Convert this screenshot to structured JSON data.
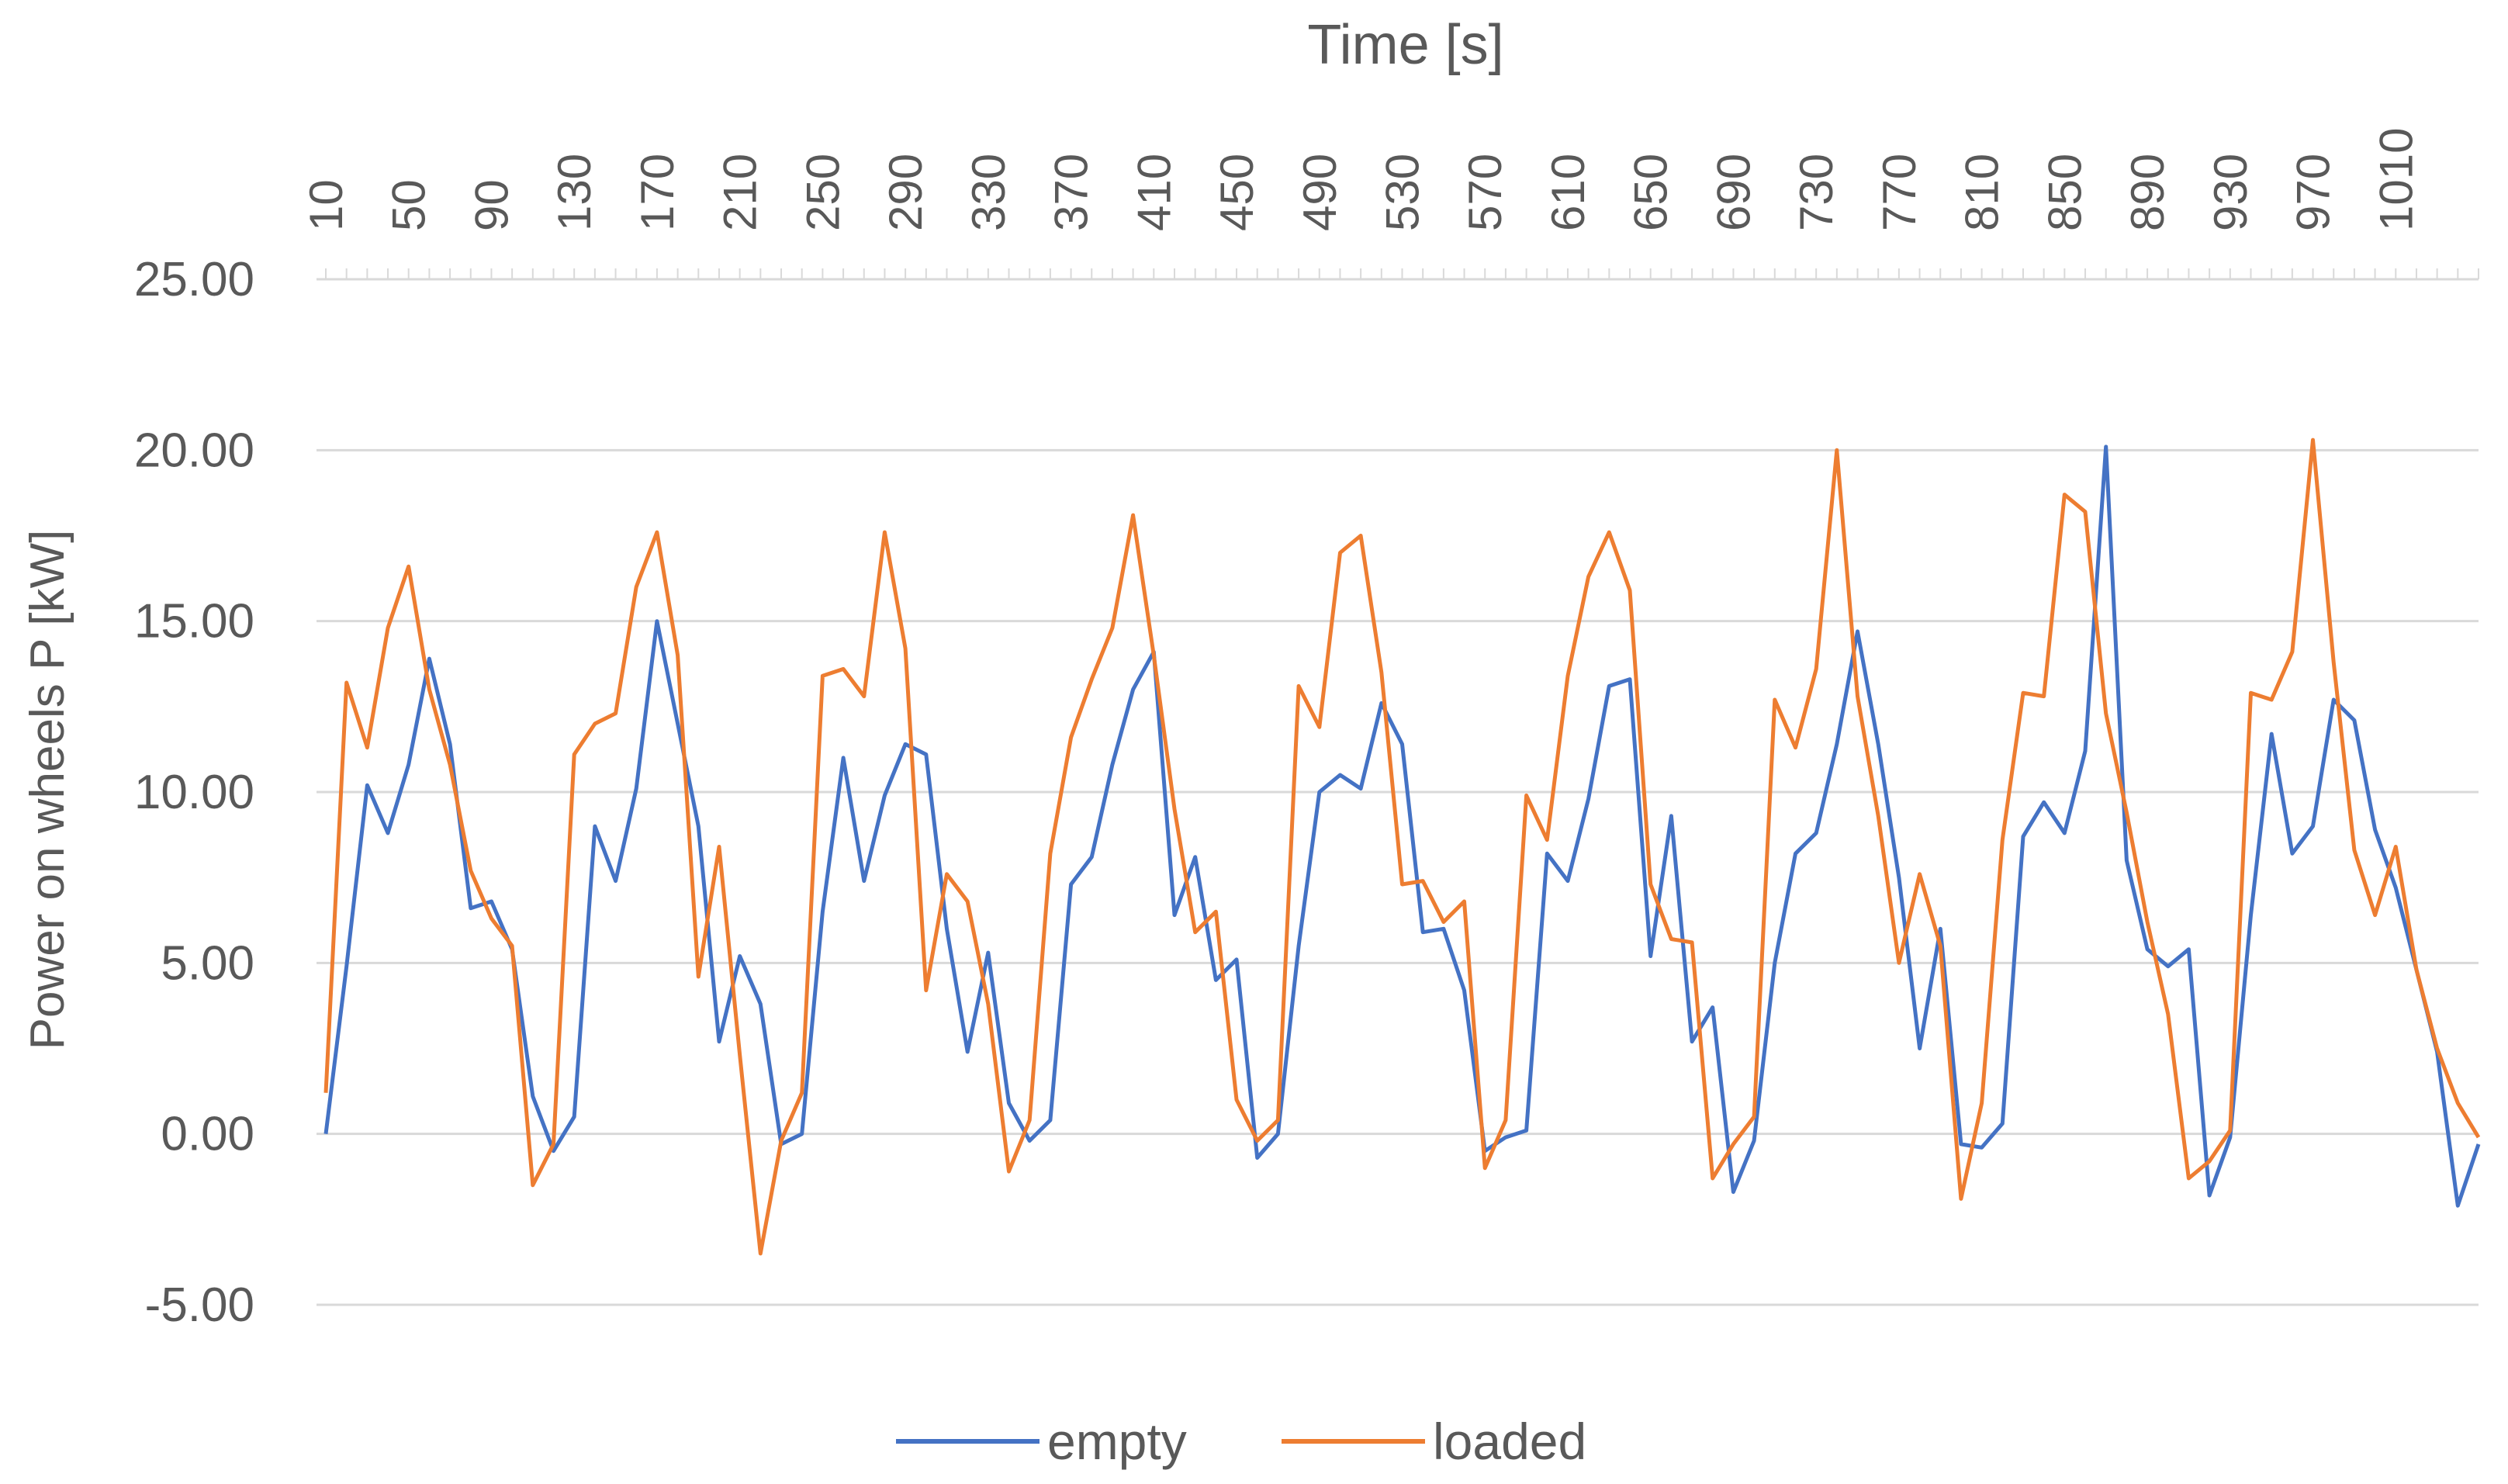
{
  "chart_data": {
    "type": "line",
    "xlabel": "Time [s]",
    "ylabel": "Power on wheels P [kW]",
    "x_axis_position": "top",
    "ylim": [
      -5,
      25
    ],
    "y_ticks": [
      "25.00",
      "20.00",
      "15.00",
      "10.00",
      "5.00",
      "0.00",
      "-5.00"
    ],
    "x_ticks": [
      "10",
      "50",
      "90",
      "130",
      "170",
      "210",
      "250",
      "290",
      "330",
      "370",
      "410",
      "450",
      "490",
      "530",
      "570",
      "610",
      "650",
      "690",
      "730",
      "770",
      "810",
      "850",
      "890",
      "930",
      "970",
      "1010"
    ],
    "grid": true,
    "legend_position": "bottom",
    "x": [
      10,
      20,
      30,
      40,
      50,
      60,
      70,
      80,
      90,
      100,
      110,
      120,
      130,
      140,
      150,
      160,
      170,
      180,
      190,
      200,
      210,
      220,
      230,
      240,
      250,
      260,
      270,
      280,
      290,
      300,
      310,
      320,
      330,
      340,
      350,
      360,
      370,
      380,
      390,
      400,
      410,
      420,
      430,
      440,
      450,
      460,
      470,
      480,
      490,
      500,
      510,
      520,
      530,
      540,
      550,
      560,
      570,
      580,
      590,
      600,
      610,
      620,
      630,
      640,
      650,
      660,
      670,
      680,
      690,
      700,
      710,
      720,
      730,
      740,
      750,
      760,
      770,
      780,
      790,
      800,
      810,
      820,
      830,
      840,
      850,
      860,
      870,
      880,
      890,
      900,
      910,
      920,
      930,
      940,
      950,
      960,
      970,
      980,
      990,
      1000,
      1010,
      1020,
      1030,
      1040,
      1050
    ],
    "series": [
      {
        "name": "empty",
        "color": "#4472c4",
        "values": [
          0.0,
          4.9,
          10.2,
          8.8,
          10.8,
          13.9,
          11.4,
          6.6,
          6.8,
          5.4,
          1.1,
          -0.5,
          0.5,
          9.0,
          7.4,
          10.1,
          15.0,
          12.0,
          9.0,
          2.7,
          5.2,
          3.8,
          -0.3,
          0.0,
          6.5,
          11.0,
          7.4,
          9.9,
          11.4,
          11.1,
          6.0,
          2.4,
          5.3,
          0.9,
          -0.2,
          0.4,
          7.3,
          8.1,
          10.8,
          13.0,
          14.1,
          6.4,
          8.1,
          4.5,
          5.1,
          -0.7,
          0.0,
          5.5,
          10.0,
          10.5,
          10.1,
          12.6,
          11.4,
          5.9,
          6.0,
          4.2,
          -0.5,
          -0.1,
          0.1,
          8.2,
          7.4,
          9.8,
          13.1,
          13.3,
          5.2,
          9.3,
          2.7,
          3.7,
          -1.7,
          -0.2,
          5.0,
          8.2,
          8.8,
          11.4,
          14.7,
          11.4,
          7.5,
          2.5,
          6.0,
          -0.3,
          -0.4,
          0.3,
          8.7,
          9.7,
          8.8,
          11.2,
          20.1,
          8.0,
          5.4,
          4.9,
          5.4,
          -1.8,
          -0.1,
          6.4,
          11.7,
          8.2,
          9.0,
          12.7,
          12.1,
          8.9,
          7.2,
          4.8,
          2.4,
          -2.1,
          -0.3
        ]
      },
      {
        "name": "loaded",
        "color": "#ed7d31",
        "values": [
          1.2,
          13.2,
          11.3,
          14.8,
          16.6,
          13.0,
          10.8,
          7.7,
          6.3,
          5.5,
          -1.5,
          -0.3,
          11.1,
          12.0,
          12.3,
          16.0,
          17.6,
          14.0,
          4.6,
          8.4,
          2.3,
          -3.5,
          -0.2,
          1.2,
          13.4,
          13.6,
          12.8,
          17.6,
          14.2,
          4.2,
          7.6,
          6.8,
          3.8,
          -1.1,
          0.4,
          8.2,
          11.6,
          13.3,
          14.8,
          18.1,
          14.0,
          9.5,
          5.9,
          6.5,
          1.0,
          -0.2,
          0.4,
          13.1,
          11.9,
          17.0,
          17.5,
          13.5,
          7.3,
          7.4,
          6.2,
          6.8,
          -1.0,
          0.4,
          9.9,
          8.6,
          13.4,
          16.3,
          17.6,
          15.9,
          7.3,
          5.7,
          5.6,
          -1.3,
          -0.3,
          0.5,
          12.7,
          11.3,
          13.6,
          20.0,
          12.8,
          9.3,
          5.0,
          7.6,
          5.5,
          -1.9,
          0.9,
          8.6,
          12.9,
          12.8,
          18.7,
          18.2,
          12.3,
          9.4,
          6.2,
          3.5,
          -1.3,
          -0.8,
          0.1,
          12.9,
          12.7,
          14.1,
          20.3,
          13.8,
          8.3,
          6.4,
          8.4,
          4.8,
          2.5,
          0.9,
          -0.1
        ]
      }
    ]
  }
}
